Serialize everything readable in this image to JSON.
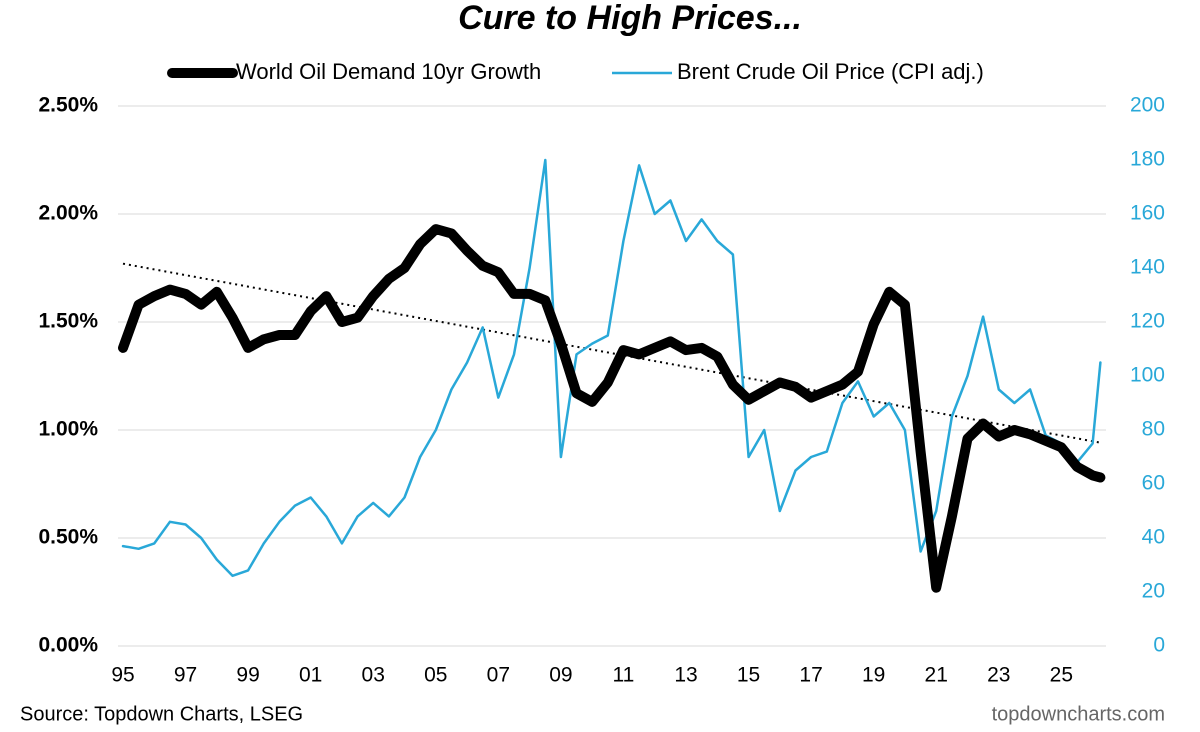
{
  "chart_data": {
    "type": "line",
    "title": "Cure to High Prices...",
    "source": "Source: Topdown Charts, LSEG",
    "watermark": "topdowncharts.com",
    "x": [
      1995.0,
      1995.5,
      1996.0,
      1996.5,
      1997.0,
      1997.5,
      1998.0,
      1998.5,
      1999.0,
      1999.5,
      2000.0,
      2000.5,
      2001.0,
      2001.5,
      2002.0,
      2002.5,
      2003.0,
      2003.5,
      2004.0,
      2004.5,
      2005.0,
      2005.5,
      2006.0,
      2006.5,
      2007.0,
      2007.5,
      2008.0,
      2008.5,
      2009.0,
      2009.5,
      2010.0,
      2010.5,
      2011.0,
      2011.5,
      2012.0,
      2012.5,
      2013.0,
      2013.5,
      2014.0,
      2014.5,
      2015.0,
      2015.5,
      2016.0,
      2016.5,
      2017.0,
      2017.5,
      2018.0,
      2018.5,
      2019.0,
      2019.5,
      2020.0,
      2020.5,
      2021.0,
      2021.5,
      2022.0,
      2022.5,
      2023.0,
      2023.5,
      2024.0,
      2024.5,
      2025.0,
      2025.5,
      2026.0,
      2026.25
    ],
    "series": [
      {
        "name": "World Oil Demand 10yr Growth",
        "color": "#000000",
        "axis": "y",
        "values": [
          1.38,
          1.58,
          1.62,
          1.65,
          1.63,
          1.58,
          1.64,
          1.52,
          1.38,
          1.42,
          1.44,
          1.44,
          1.55,
          1.62,
          1.5,
          1.52,
          1.62,
          1.7,
          1.75,
          1.86,
          1.93,
          1.91,
          1.83,
          1.76,
          1.73,
          1.63,
          1.63,
          1.6,
          1.4,
          1.17,
          1.13,
          1.22,
          1.37,
          1.35,
          1.38,
          1.41,
          1.37,
          1.38,
          1.34,
          1.21,
          1.14,
          1.18,
          1.22,
          1.2,
          1.15,
          1.18,
          1.21,
          1.27,
          1.49,
          1.64,
          1.58,
          0.9,
          0.27,
          0.6,
          0.96,
          1.03,
          0.97,
          1.0,
          0.98,
          0.95,
          0.92,
          0.83,
          0.79,
          0.78
        ]
      },
      {
        "name": "Brent Crude Oil Price (CPI adj.)",
        "color": "#29a8d8",
        "axis": "y2",
        "values": [
          37,
          36,
          38,
          46,
          45,
          40,
          32,
          26,
          28,
          38,
          46,
          52,
          55,
          48,
          38,
          48,
          53,
          48,
          55,
          70,
          80,
          95,
          105,
          118,
          92,
          108,
          140,
          180,
          70,
          108,
          112,
          115,
          150,
          178,
          160,
          165,
          150,
          158,
          150,
          145,
          70,
          80,
          50,
          65,
          70,
          72,
          90,
          98,
          85,
          90,
          80,
          35,
          50,
          85,
          100,
          122,
          95,
          90,
          95,
          78,
          75,
          68,
          75,
          105
        ]
      }
    ],
    "trendline": {
      "x": [
        1995,
        2026.3
      ],
      "values": [
        1.77,
        0.94
      ]
    },
    "xlim": [
      1995,
      2026.3
    ],
    "xticks": [
      {
        "value": 1995,
        "label": "95"
      },
      {
        "value": 1997,
        "label": "97"
      },
      {
        "value": 1999,
        "label": "99"
      },
      {
        "value": 2001,
        "label": "01"
      },
      {
        "value": 2003,
        "label": "03"
      },
      {
        "value": 2005,
        "label": "05"
      },
      {
        "value": 2007,
        "label": "07"
      },
      {
        "value": 2009,
        "label": "09"
      },
      {
        "value": 2011,
        "label": "11"
      },
      {
        "value": 2013,
        "label": "13"
      },
      {
        "value": 2015,
        "label": "15"
      },
      {
        "value": 2017,
        "label": "17"
      },
      {
        "value": 2019,
        "label": "19"
      },
      {
        "value": 2021,
        "label": "21"
      },
      {
        "value": 2023,
        "label": "23"
      },
      {
        "value": 2025,
        "label": "25"
      }
    ],
    "ylim": [
      0,
      2.5
    ],
    "yticks": [
      {
        "value": 0,
        "label": "0.00%"
      },
      {
        "value": 0.5,
        "label": "0.50%"
      },
      {
        "value": 1,
        "label": "1.00%"
      },
      {
        "value": 1.5,
        "label": "1.50%"
      },
      {
        "value": 2,
        "label": "2.00%"
      },
      {
        "value": 2.5,
        "label": "2.50%"
      }
    ],
    "y2lim": [
      0,
      200
    ],
    "y2ticks": [
      0,
      20,
      40,
      60,
      80,
      100,
      120,
      140,
      160,
      180,
      200
    ],
    "grid": true
  }
}
